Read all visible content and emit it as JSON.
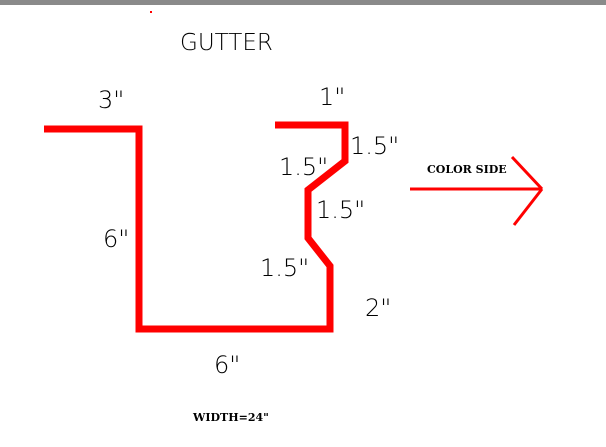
{
  "title": "GUTTER",
  "dimensions": {
    "top_left": "3\"",
    "left_side": "6\"",
    "bottom": "6\"",
    "top_right": "1\"",
    "drip_edge": "1.5\"",
    "upper_slant": "1.5\"",
    "middle_vertical": "1.5\"",
    "lower_slant": "1.5\"",
    "right_side": "2\""
  },
  "color_side_label": "COLOR SIDE",
  "width_note": "WIDTH=24\"",
  "colors": {
    "profile": "#ff0000",
    "text": "#000000",
    "top_bar": "#8a8a8a"
  }
}
